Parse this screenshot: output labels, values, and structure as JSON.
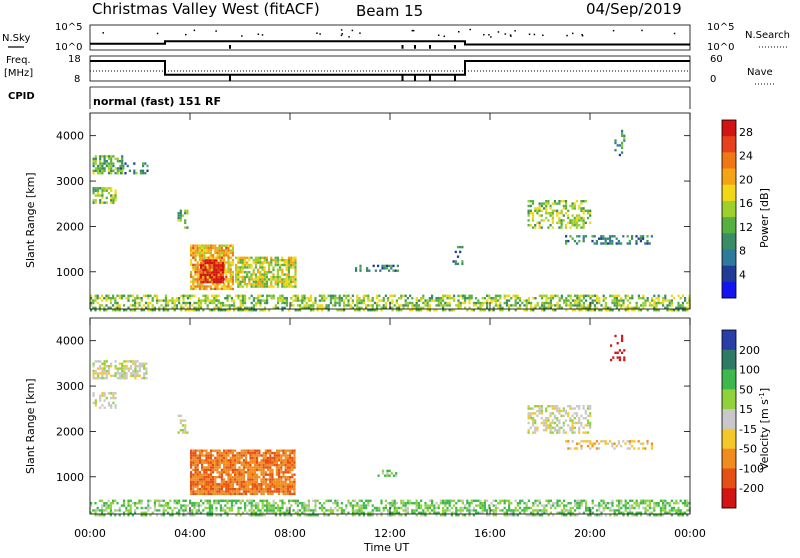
{
  "header": {
    "title": "Christmas Valley West (fitACF)",
    "beam": "Beam 15",
    "date": "04/Sep/2019"
  },
  "panel_labels": {
    "nsky": "N.Sky",
    "nsearch": "N.Search",
    "freq_line1": "Freq.",
    "freq_line2": "[MHz]",
    "nave": "Nave",
    "cpid": "CPID",
    "cpid_value": "normal (fast) 151 RF"
  },
  "noise_axis": {
    "left_ticks": [
      "10^5",
      "10^0"
    ],
    "right_ticks": [
      "10^5",
      "10^0"
    ]
  },
  "freq_axis": {
    "left_ticks": [
      "18",
      "8"
    ],
    "right_ticks": [
      "60",
      "0"
    ]
  },
  "chart_data": [
    {
      "type": "line",
      "panel": "noise",
      "x_unit": "hours UT",
      "xlim": [
        0,
        24
      ],
      "series": [
        {
          "x": [
            0,
            3,
            3,
            15,
            15,
            24
          ],
          "values": [
            0.25,
            0.25,
            0.35,
            0.35,
            0.22,
            0.22
          ]
        }
      ],
      "spikes_x": [
        5.6,
        12.5,
        13.0,
        13.6,
        14.6
      ]
    },
    {
      "type": "line",
      "panel": "frequency",
      "x_unit": "hours UT",
      "xlim": [
        0,
        24
      ],
      "series": [
        {
          "x": [
            0,
            3,
            3,
            15,
            15,
            24
          ],
          "values": [
            16,
            16,
            10.5,
            10.5,
            16,
            16
          ]
        }
      ],
      "nave_dotted_level": 12
    },
    {
      "type": "heatmap",
      "panel": "power",
      "ylabel": "Slant Range [km]",
      "xlim": [
        0,
        24
      ],
      "ylim": [
        180,
        4500
      ],
      "yticks": [
        1000,
        2000,
        3000,
        4000
      ],
      "colorbar": {
        "label": "Power [dB]",
        "ticks": [
          4,
          8,
          12,
          16,
          20,
          24,
          28
        ],
        "range": [
          0,
          30
        ]
      },
      "patches": [
        {
          "t0": 0.1,
          "t1": 1.3,
          "r0": 3200,
          "r1": 3600,
          "value": 12,
          "density": 0.7
        },
        {
          "t0": 1.2,
          "t1": 2.3,
          "r0": 3200,
          "r1": 3450,
          "value": 9,
          "density": 0.45
        },
        {
          "t0": 0.1,
          "t1": 1.0,
          "r0": 2550,
          "r1": 2900,
          "value": 14,
          "density": 0.55
        },
        {
          "t0": 3.5,
          "t1": 3.9,
          "r0": 2000,
          "r1": 2400,
          "value": 12,
          "density": 0.4
        },
        {
          "t0": 4.0,
          "t1": 5.7,
          "r0": 650,
          "r1": 1650,
          "value": 20,
          "density": 0.85
        },
        {
          "t0": 4.4,
          "t1": 5.3,
          "r0": 800,
          "r1": 1300,
          "value": 28,
          "density": 0.9
        },
        {
          "t0": 5.8,
          "t1": 8.2,
          "r0": 700,
          "r1": 1350,
          "value": 16,
          "density": 0.75
        },
        {
          "t0": 10.6,
          "t1": 12.3,
          "r0": 1050,
          "r1": 1200,
          "value": 8,
          "density": 0.5
        },
        {
          "t0": 14.5,
          "t1": 14.9,
          "r0": 1200,
          "r1": 1600,
          "value": 8,
          "density": 0.35
        },
        {
          "t0": 17.5,
          "t1": 20.0,
          "r0": 2000,
          "r1": 2600,
          "value": 14,
          "density": 0.5
        },
        {
          "t0": 19.0,
          "t1": 22.5,
          "r0": 1650,
          "r1": 1850,
          "value": 8,
          "density": 0.45
        },
        {
          "t0": 20.8,
          "t1": 21.4,
          "r0": 3600,
          "r1": 4150,
          "value": 10,
          "density": 0.25
        },
        {
          "t0": 0.0,
          "t1": 24.0,
          "r0": 180,
          "r1": 500,
          "value": 14,
          "density": 0.55
        }
      ]
    },
    {
      "type": "heatmap",
      "panel": "velocity",
      "ylabel": "Slant Range [km]",
      "xlabel": "Time UT",
      "xlim": [
        0,
        24
      ],
      "ylim": [
        180,
        4500
      ],
      "yticks": [
        1000,
        2000,
        3000,
        4000
      ],
      "xticks": [
        "00:00",
        "04:00",
        "08:00",
        "12:00",
        "16:00",
        "20:00",
        "00:00"
      ],
      "colorbar": {
        "label": "Velocity [m s-1]",
        "ticks": [
          "200",
          "100",
          "50",
          "15",
          "-15",
          "-50",
          "-100",
          "-200"
        ]
      },
      "patches": [
        {
          "t0": 0.1,
          "t1": 2.3,
          "r0": 3200,
          "r1": 3600,
          "value": 0,
          "density": 0.6
        },
        {
          "t0": 0.1,
          "t1": 1.0,
          "r0": 2550,
          "r1": 2900,
          "value": 0,
          "density": 0.5
        },
        {
          "t0": 3.5,
          "t1": 3.9,
          "r0": 2000,
          "r1": 2400,
          "value": 0,
          "density": 0.35
        },
        {
          "t0": 4.0,
          "t1": 8.2,
          "r0": 650,
          "r1": 1650,
          "value": -70,
          "density": 0.85
        },
        {
          "t0": 11.5,
          "t1": 12.3,
          "r0": 1050,
          "r1": 1200,
          "value": 25,
          "density": 0.5
        },
        {
          "t0": 17.5,
          "t1": 20.0,
          "r0": 2000,
          "r1": 2600,
          "value": 0,
          "density": 0.45
        },
        {
          "t0": 19.0,
          "t1": 22.5,
          "r0": 1650,
          "r1": 1850,
          "value": -20,
          "density": 0.4
        },
        {
          "t0": 20.8,
          "t1": 21.4,
          "r0": 3600,
          "r1": 4150,
          "value": -250,
          "density": 0.25
        },
        {
          "t0": 0.0,
          "t1": 24.0,
          "r0": 180,
          "r1": 500,
          "value": 30,
          "density": 0.55
        }
      ]
    }
  ],
  "time_axis": {
    "ticks": [
      "00:00",
      "04:00",
      "08:00",
      "12:00",
      "16:00",
      "20:00",
      "00:00"
    ],
    "label": "Time UT"
  },
  "colorbars": {
    "power": {
      "label": "Power [dB]",
      "ticks": [
        "4",
        "8",
        "12",
        "16",
        "20",
        "24",
        "28"
      ],
      "colors": [
        "#1414f0",
        "#1e3c96",
        "#2e7a9a",
        "#3a8c64",
        "#56b040",
        "#9ed02c",
        "#f0d818",
        "#f5a414",
        "#f07814",
        "#e6401c",
        "#d21414"
      ]
    },
    "velocity": {
      "label": "Velocity [m s",
      "label_sup": "-1",
      "label_end": "]",
      "ticks": [
        "200",
        "100",
        "50",
        "15",
        "-15",
        "-50",
        "-100",
        "-200"
      ],
      "colors": [
        "#2a3ea8",
        "#2e7a64",
        "#3cb84c",
        "#8fd23a",
        "#c8c8c8",
        "#f5c82a",
        "#f08c1e",
        "#e65014",
        "#d21414"
      ]
    }
  }
}
